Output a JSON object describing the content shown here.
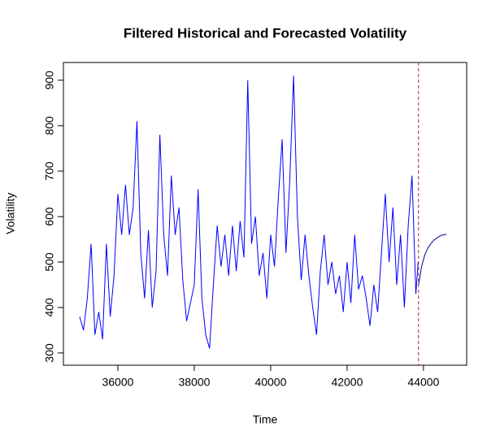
{
  "chart_data": {
    "type": "line",
    "title": "Filtered Historical and Forecasted Volatility",
    "x_label": "Time",
    "y_label": "Volatility",
    "xlim": [
      34575,
      45130
    ],
    "ylim": [
      273,
      939
    ],
    "xticks": [
      36000,
      38000,
      40000,
      42000,
      44000
    ],
    "yticks": [
      300,
      400,
      500,
      600,
      700,
      800,
      900
    ],
    "series": [
      {
        "color": "#0000ff",
        "x": [
          35000,
          35100,
          35200,
          35300,
          35400,
          35500,
          35600,
          35700,
          35800,
          35900,
          36000,
          36100,
          36200,
          36300,
          36400,
          36500,
          36600,
          36700,
          36800,
          36900,
          37000,
          37100,
          37200,
          37300,
          37400,
          37500,
          37600,
          37700,
          37800,
          37900,
          38000,
          38100,
          38200,
          38300,
          38400,
          38500,
          38600,
          38700,
          38800,
          38900,
          39000,
          39100,
          39200,
          39300,
          39400,
          39500,
          39600,
          39700,
          39800,
          39900,
          40000,
          40100,
          40200,
          40300,
          40400,
          40500,
          40600,
          40700,
          40800,
          40900,
          41000,
          41100,
          41200,
          41300,
          41400,
          41500,
          41600,
          41700,
          41800,
          41900,
          42000,
          42100,
          42200,
          42300,
          42400,
          42500,
          42600,
          42700,
          42800,
          42900,
          43000,
          43100,
          43200,
          43300,
          43400,
          43500,
          43600,
          43700,
          43800,
          43860
        ],
        "values": [
          380,
          350,
          420,
          540,
          340,
          390,
          330,
          540,
          380,
          470,
          650,
          560,
          670,
          560,
          620,
          810,
          520,
          420,
          570,
          400,
          480,
          780,
          560,
          470,
          690,
          560,
          620,
          460,
          370,
          410,
          450,
          660,
          420,
          340,
          310,
          450,
          580,
          490,
          560,
          470,
          580,
          480,
          590,
          510,
          900,
          540,
          600,
          470,
          520,
          420,
          560,
          490,
          640,
          770,
          520,
          680,
          910,
          600,
          460,
          560,
          470,
          400,
          340,
          480,
          560,
          450,
          500,
          430,
          470,
          390,
          500,
          410,
          560,
          440,
          470,
          420,
          360,
          450,
          390,
          520,
          650,
          500,
          620,
          450,
          560,
          400,
          580,
          690,
          430,
          500
        ]
      },
      {
        "color": "#00008b",
        "x": [
          43870,
          43950,
          44030,
          44110,
          44190,
          44270,
          44350,
          44430,
          44510,
          44600
        ],
        "values": [
          450,
          490,
          515,
          530,
          540,
          548,
          553,
          557,
          560,
          561
        ]
      }
    ],
    "vline": {
      "x": 43870,
      "color": "#b22222"
    }
  }
}
